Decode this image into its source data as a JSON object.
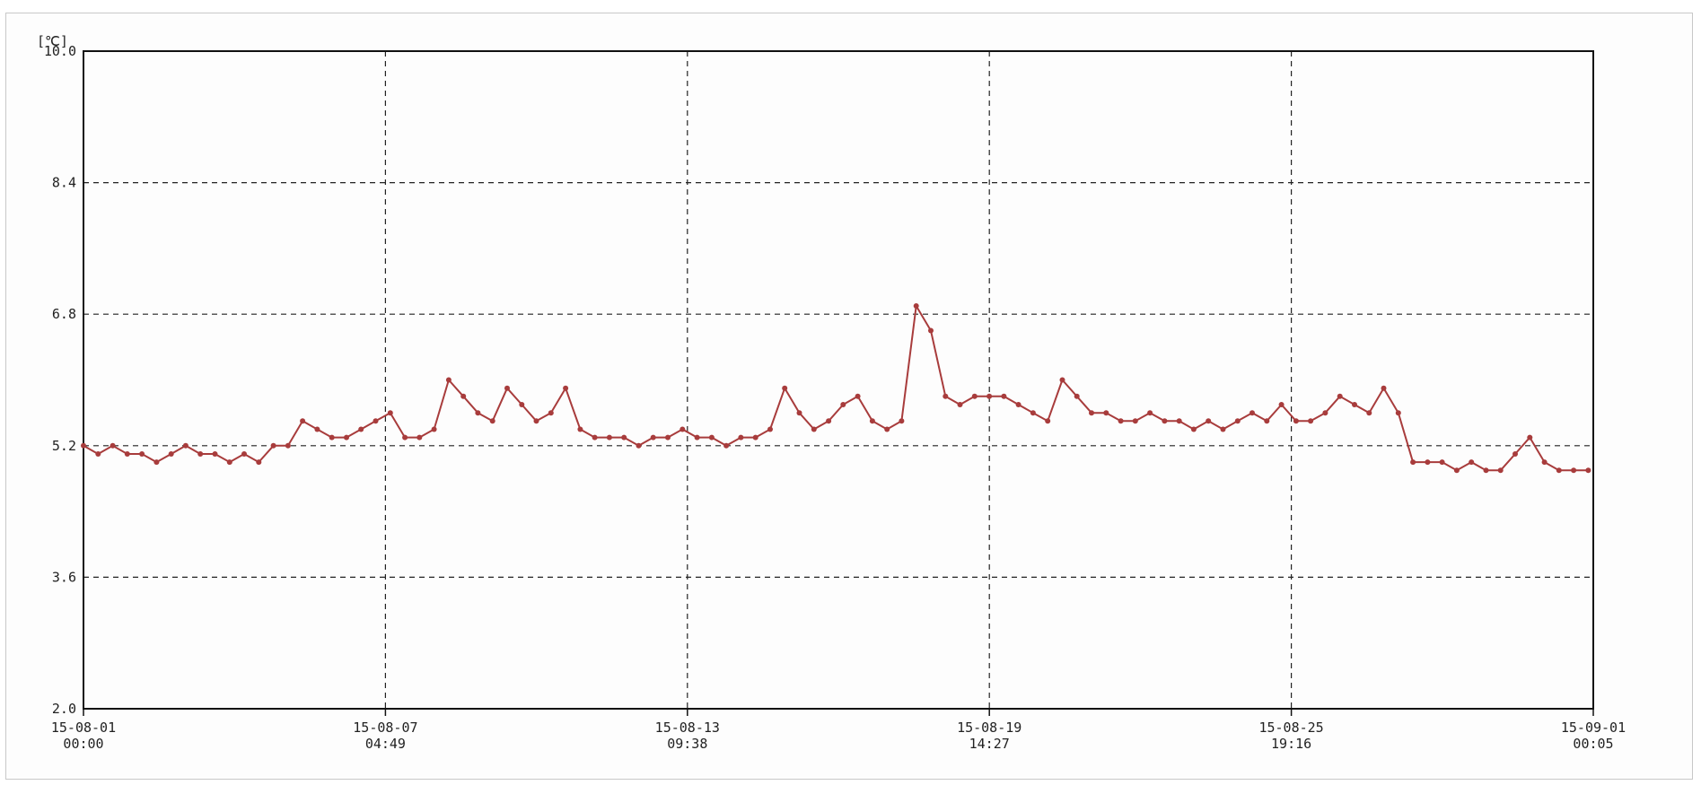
{
  "chart_data": {
    "type": "line",
    "ylabel": "[℃]",
    "ylim": [
      2.0,
      10.0
    ],
    "y_ticks": [
      "10.0",
      "8.4",
      "6.8",
      "5.2",
      "3.6",
      "2.0"
    ],
    "x_ticks": [
      {
        "date": "15-08-01",
        "time": "00:00"
      },
      {
        "date": "15-08-07",
        "time": "04:49"
      },
      {
        "date": "15-08-13",
        "time": "09:38"
      },
      {
        "date": "15-08-19",
        "time": "14:27"
      },
      {
        "date": "15-08-25",
        "time": "19:16"
      },
      {
        "date": "15-09-01",
        "time": "00:05"
      }
    ],
    "x_range_days": [
      0,
      31.0035
    ],
    "grid": true,
    "grid_style": "dashed",
    "series": [
      {
        "color": "#a83c3c",
        "x_days": [
          0.0,
          0.3,
          0.6,
          0.9,
          1.2,
          1.5,
          1.8,
          2.1,
          2.4,
          2.7,
          3.0,
          3.3,
          3.6,
          3.9,
          4.2,
          4.5,
          4.8,
          5.1,
          5.4,
          5.7,
          6.0,
          6.3,
          6.6,
          6.9,
          7.2,
          7.5,
          7.8,
          8.1,
          8.4,
          8.7,
          9.0,
          9.3,
          9.6,
          9.9,
          10.2,
          10.5,
          10.8,
          11.1,
          11.4,
          11.7,
          12.0,
          12.3,
          12.6,
          12.9,
          13.2,
          13.5,
          13.8,
          14.1,
          14.4,
          14.7,
          15.0,
          15.3,
          15.6,
          15.9,
          16.2,
          16.5,
          16.8,
          17.1,
          17.4,
          17.7,
          18.0,
          18.3,
          18.6,
          18.9,
          19.2,
          19.5,
          19.8,
          20.1,
          20.4,
          20.7,
          21.0,
          21.3,
          21.6,
          21.9,
          22.2,
          22.5,
          22.8,
          23.1,
          23.4,
          23.7,
          24.0,
          24.3,
          24.6,
          24.9,
          25.2,
          25.5,
          25.8,
          26.1,
          26.4,
          26.7,
          27.0,
          27.3,
          27.6,
          27.9,
          28.2,
          28.5,
          28.8,
          29.1,
          29.4,
          29.7,
          30.0,
          30.3,
          30.6,
          30.9
        ],
        "y_values": [
          5.2,
          5.1,
          5.2,
          5.1,
          5.1,
          5.0,
          5.1,
          5.2,
          5.1,
          5.1,
          5.0,
          5.1,
          5.0,
          5.2,
          5.2,
          5.5,
          5.4,
          5.3,
          5.3,
          5.4,
          5.5,
          5.6,
          5.3,
          5.3,
          5.4,
          6.0,
          5.8,
          5.6,
          5.5,
          5.9,
          5.7,
          5.5,
          5.6,
          5.9,
          5.4,
          5.3,
          5.3,
          5.3,
          5.2,
          5.3,
          5.3,
          5.4,
          5.3,
          5.3,
          5.2,
          5.3,
          5.3,
          5.4,
          5.9,
          5.6,
          5.4,
          5.5,
          5.7,
          5.8,
          5.5,
          5.4,
          5.5,
          6.9,
          6.6,
          5.8,
          5.7,
          5.8,
          5.8,
          5.8,
          5.7,
          5.6,
          5.5,
          6.0,
          5.8,
          5.6,
          5.6,
          5.5,
          5.5,
          5.6,
          5.5,
          5.5,
          5.6,
          5.6,
          5.6,
          5.5,
          5.9,
          5.7,
          5.6,
          5.5,
          5.6,
          5.4,
          5.3,
          5.1,
          5.8,
          5.6,
          5.5,
          5.5,
          5.6,
          5.7,
          5.6,
          5.7,
          5.6,
          5.6,
          5.5,
          5.5,
          5.5,
          5.4,
          5.5,
          5.4
        ],
        "tail_x_days": [
          22.8,
          23.1,
          23.4,
          23.7,
          24.0,
          24.3,
          24.6,
          24.9,
          25.2,
          25.5,
          25.8,
          26.1,
          26.4,
          26.7,
          27.0,
          27.3,
          27.6,
          27.9,
          28.2,
          28.5,
          28.8,
          29.1,
          29.4,
          29.7,
          30.0,
          30.3,
          30.6,
          30.9
        ],
        "tail_y_values": [
          5.4,
          5.5,
          5.4,
          5.5,
          5.6,
          5.5,
          5.7,
          5.5,
          5.5,
          5.6,
          5.8,
          5.7,
          5.6,
          5.9,
          5.6,
          5.0,
          5.0,
          5.0,
          4.9,
          5.0,
          4.9,
          4.9,
          5.1,
          5.3,
          5.0,
          4.9,
          4.9,
          4.9
        ]
      }
    ]
  }
}
